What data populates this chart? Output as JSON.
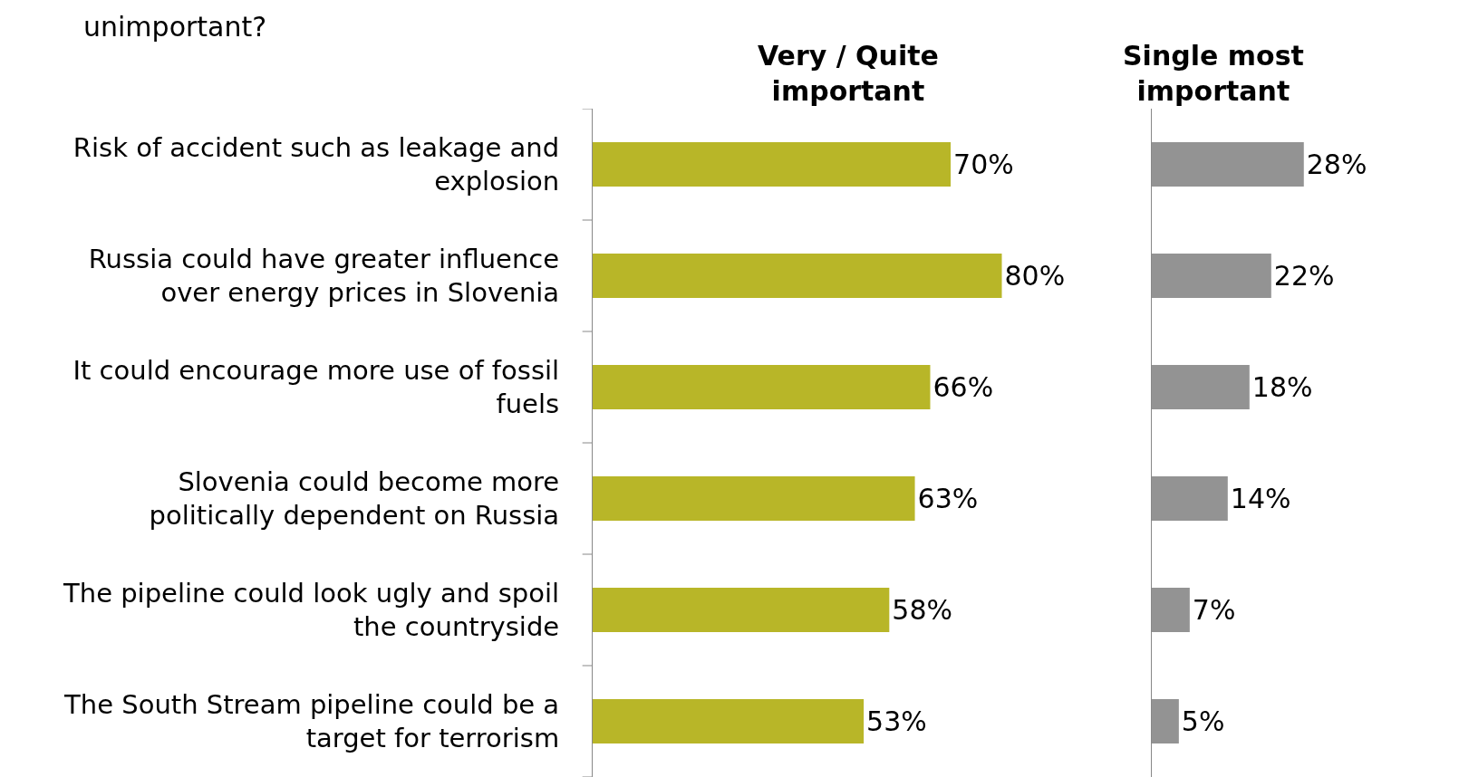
{
  "chart_data": [
    {
      "type": "bar",
      "orientation": "horizontal",
      "title": "Very / Quite\nimportant",
      "annotations": [
        "unimportant?"
      ],
      "categories": [
        "Risk of accident such as leakage and\nexplosion",
        "Russia could have greater influence\nover energy prices in Slovenia",
        "It could encourage more use of fossil\nfuels",
        "Slovenia could become more\npolitically dependent on Russia",
        "The pipeline could look ugly and spoil\nthe countryside",
        "The South Stream pipeline could be a\ntarget for terrorism"
      ],
      "values": [
        70,
        80,
        66,
        63,
        58,
        53
      ],
      "color": "#b8b628",
      "value_labels": [
        "70%",
        "80%",
        "66%",
        "63%",
        "58%",
        "53%"
      ]
    },
    {
      "type": "bar",
      "orientation": "horizontal",
      "title": "Single most\nimportant",
      "categories": [
        null,
        null,
        null,
        null,
        null,
        null
      ],
      "values": [
        28,
        22,
        18,
        14,
        7,
        5
      ],
      "color": "#939393",
      "value_labels": [
        "28%",
        "22%",
        "18%",
        "14%",
        "7%",
        "5%"
      ]
    }
  ]
}
